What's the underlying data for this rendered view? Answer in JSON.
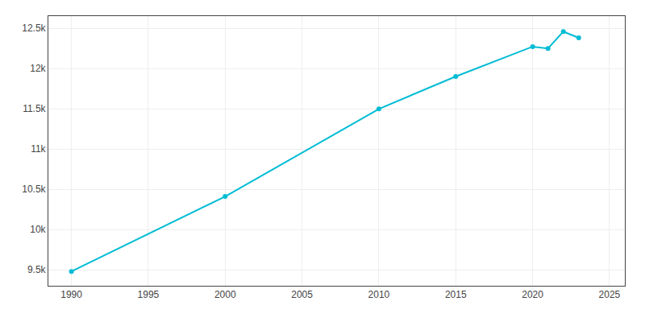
{
  "chart_data": {
    "type": "line",
    "x": [
      1990,
      2000,
      2010,
      2015,
      2020,
      2021,
      2022,
      2023
    ],
    "values": [
      9478,
      10409,
      11497,
      11900,
      12271,
      12248,
      12458,
      12380
    ],
    "color": "#00BCD4",
    "marker": "circle",
    "line_style": "solid",
    "xlim": [
      1988.5,
      2026
    ],
    "ylim": [
      9300,
      12650
    ],
    "xticks": [
      1990,
      1995,
      2000,
      2005,
      2010,
      2015,
      2020,
      2025
    ],
    "yticks": [
      {
        "value": 9500,
        "label": "9.5k"
      },
      {
        "value": 10000,
        "label": "10k"
      },
      {
        "value": 10500,
        "label": "10.5k"
      },
      {
        "value": 11000,
        "label": "11k"
      },
      {
        "value": 11500,
        "label": "11.5k"
      },
      {
        "value": 12000,
        "label": "12k"
      },
      {
        "value": 12500,
        "label": "12.5k"
      }
    ],
    "grid": true
  }
}
